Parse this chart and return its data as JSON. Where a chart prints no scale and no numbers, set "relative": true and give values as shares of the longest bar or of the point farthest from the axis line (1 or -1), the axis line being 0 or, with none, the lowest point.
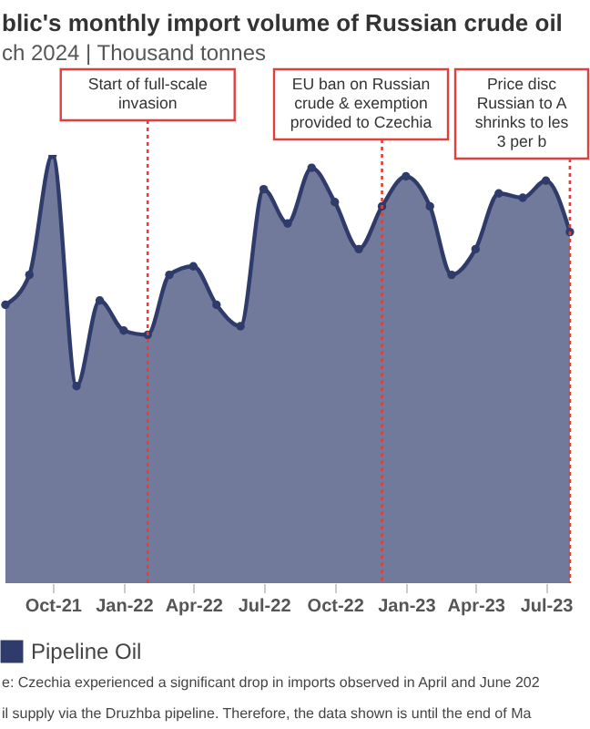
{
  "chart_data": {
    "type": "area",
    "title": "blic's monthly import volume of Russian crude oil",
    "subtitle": "ch 2024 | Thousand tonnes",
    "relative": true,
    "marker": "circle",
    "legend": "bottom",
    "x": [
      "2021-08",
      "2021-09",
      "2021-10",
      "2021-11",
      "2021-12",
      "2022-01",
      "2022-02",
      "2022-03",
      "2022-04",
      "2022-05",
      "2022-06",
      "2022-07",
      "2022-08",
      "2022-09",
      "2022-10",
      "2022-11",
      "2022-12",
      "2023-01",
      "2023-02",
      "2023-03",
      "2023-04",
      "2023-05",
      "2023-06",
      "2023-07",
      "2023-08"
    ],
    "xlim": [
      "2021-07-25",
      "2023-08-27"
    ],
    "xticks": [
      {
        "value": "2021-10",
        "label": "Oct-21"
      },
      {
        "value": "2022-01",
        "label": "Jan-22"
      },
      {
        "value": "2022-04",
        "label": "Apr-22"
      },
      {
        "value": "2022-07",
        "label": "Jul-22"
      },
      {
        "value": "2022-10",
        "label": "Oct-22"
      },
      {
        "value": "2023-01",
        "label": "Jan-23"
      },
      {
        "value": "2023-04",
        "label": "Apr-23"
      },
      {
        "value": "2023-07",
        "label": "Jul-23"
      }
    ],
    "series": [
      {
        "name": "Pipeline Oil",
        "color": "#2f3b6b",
        "values": [
          0.65,
          0.72,
          1,
          0.46,
          0.66,
          0.59,
          0.58,
          0.72,
          0.74,
          0.65,
          0.6,
          0.92,
          0.84,
          0.97,
          0.89,
          0.78,
          0.88,
          0.95,
          0.88,
          0.72,
          0.78,
          0.91,
          0.9,
          0.94,
          0.82
        ]
      }
    ],
    "ref_lines": [
      {
        "axis": "x",
        "value": "2022-02",
        "label": "Start of full-scale\ninvasion",
        "color": "#e0403c",
        "line_style": "dotted"
      },
      {
        "axis": "x",
        "value": "2022-12",
        "label": "EU ban on Russian\ncrude & exemption\nprovided to Czechia",
        "color": "#e0403c",
        "line_style": "dotted"
      },
      {
        "axis": "x",
        "value": "2023-08",
        "label": "Price disc\nRussian to A\nshrinks to les\n3 per b",
        "color": "#e0403c",
        "line_style": "dotted"
      }
    ],
    "annotations": [
      "e: Czechia experienced a significant drop in imports observed in April and June 202",
      "il supply via the Druzhba pipeline. Therefore, the data shown is until the end of Ma"
    ]
  }
}
